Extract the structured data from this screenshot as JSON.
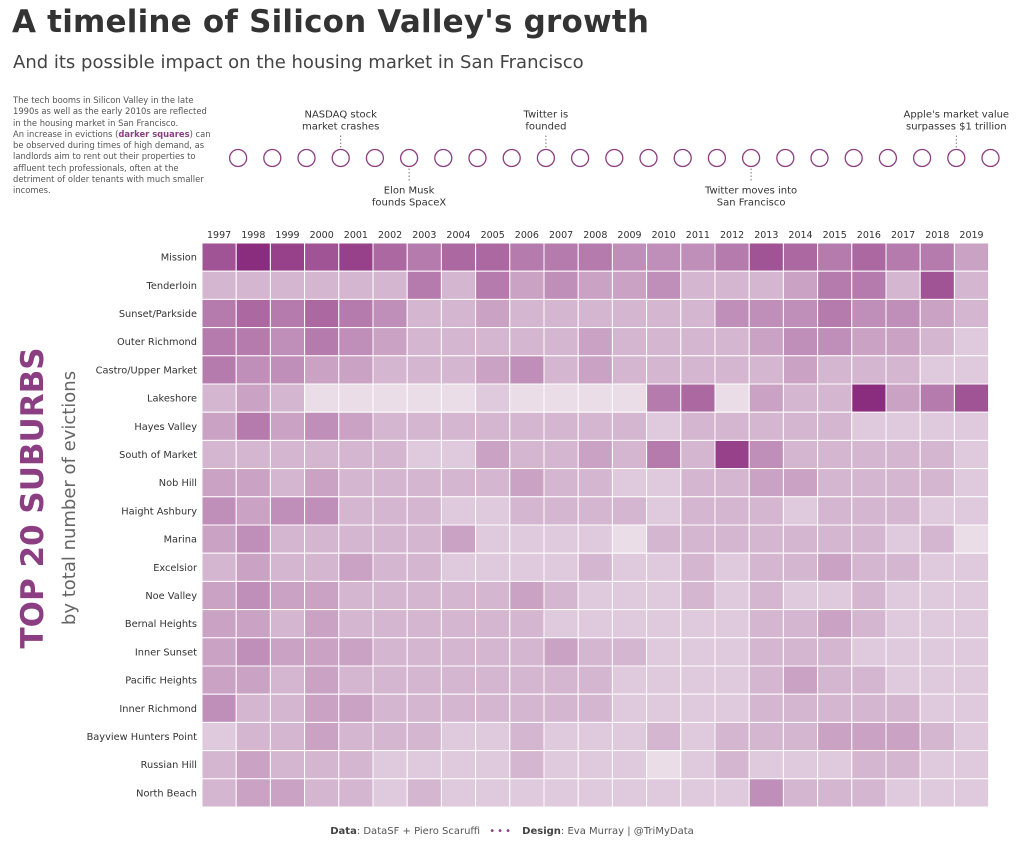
{
  "header": {
    "title": "A timeline of Silicon Valley's growth",
    "subtitle": "And its possible impact on the housing market in San Francisco"
  },
  "intro": {
    "p1": "The tech booms in Silicon Valley in the late 1990s as well as the early 2010s are reflected in the housing market in San Francisco.",
    "p2_before": "An increase in evictions (",
    "p2_highlight": "darker squares",
    "p2_after": ") can be observed during times of high demand, as landlords aim to rent out their properties to affluent tech professionals, often at the detriment of older tenants with much smaller incomes."
  },
  "side_label": {
    "big": "TOP 20 SUBURBS",
    "small": "by total number of evictions"
  },
  "footer": {
    "data_label": "Data",
    "data_value": ": DataSF + Piero Scaruffi",
    "dots": "•••",
    "design_label": "Design",
    "design_value": ": Eva Murray | @TriMyData"
  },
  "colors": {
    "accent": "#8b3f82",
    "cell_max": "#8b2d7e",
    "cell_min": "#f4f0f3"
  },
  "chart_data": {
    "type": "heatmap",
    "x": [
      "1997",
      "1998",
      "1999",
      "2000",
      "2001",
      "2002",
      "2003",
      "2004",
      "2005",
      "2006",
      "2007",
      "2008",
      "2009",
      "2010",
      "2011",
      "2012",
      "2013",
      "2014",
      "2015",
      "2016",
      "2017",
      "2018",
      "2019"
    ],
    "y": [
      "Mission",
      "Tenderloin",
      "Sunset/Parkside",
      "Outer Richmond",
      "Castro/Upper Market",
      "Lakeshore",
      "Hayes Valley",
      "South of Market",
      "Nob Hill",
      "Haight Ashbury",
      "Marina",
      "Excelsior",
      "Noe Valley",
      "Bernal Heights",
      "Inner Sunset",
      "Pacific Heights",
      "Inner Richmond",
      "Bayview Hunters Point",
      "Russian Hill",
      "North Beach"
    ],
    "intensity_scale": [
      0,
      10
    ],
    "values": [
      [
        8,
        10,
        9,
        8,
        9,
        7,
        6,
        7,
        7,
        6,
        6,
        6,
        5,
        5,
        5,
        6,
        8,
        7,
        6,
        7,
        6,
        6,
        4
      ],
      [
        3,
        3,
        3,
        3,
        3,
        3,
        6,
        3,
        6,
        4,
        5,
        4,
        4,
        5,
        3,
        3,
        3,
        4,
        6,
        6,
        3,
        8,
        3
      ],
      [
        6,
        7,
        6,
        7,
        6,
        5,
        3,
        3,
        4,
        3,
        3,
        3,
        3,
        3,
        3,
        5,
        5,
        5,
        6,
        5,
        5,
        4,
        3
      ],
      [
        6,
        6,
        5,
        6,
        5,
        4,
        3,
        3,
        3,
        3,
        3,
        4,
        3,
        3,
        3,
        3,
        4,
        5,
        5,
        4,
        4,
        3,
        2
      ],
      [
        6,
        5,
        5,
        4,
        4,
        3,
        3,
        3,
        4,
        5,
        3,
        4,
        3,
        3,
        3,
        3,
        3,
        4,
        3,
        3,
        3,
        2,
        2
      ],
      [
        3,
        4,
        3,
        1,
        1,
        1,
        1,
        1,
        2,
        1,
        1,
        1,
        1,
        6,
        7,
        1,
        4,
        3,
        3,
        10,
        4,
        6,
        8
      ],
      [
        4,
        6,
        4,
        5,
        4,
        3,
        3,
        3,
        3,
        3,
        3,
        3,
        3,
        2,
        3,
        3,
        3,
        3,
        3,
        2,
        2,
        2,
        2
      ],
      [
        3,
        3,
        3,
        3,
        3,
        3,
        2,
        2,
        4,
        3,
        3,
        4,
        3,
        6,
        3,
        9,
        5,
        3,
        3,
        3,
        3,
        3,
        2
      ],
      [
        4,
        4,
        3,
        4,
        3,
        3,
        3,
        3,
        3,
        4,
        3,
        3,
        2,
        2,
        3,
        3,
        4,
        4,
        3,
        3,
        3,
        3,
        2
      ],
      [
        5,
        4,
        5,
        5,
        3,
        3,
        3,
        2,
        2,
        3,
        3,
        3,
        3,
        2,
        3,
        3,
        3,
        2,
        3,
        3,
        3,
        2,
        2
      ],
      [
        4,
        5,
        3,
        3,
        3,
        3,
        3,
        4,
        2,
        2,
        2,
        2,
        1,
        3,
        3,
        3,
        3,
        3,
        3,
        3,
        2,
        3,
        1
      ],
      [
        3,
        4,
        3,
        3,
        4,
        3,
        3,
        2,
        2,
        2,
        2,
        3,
        2,
        2,
        3,
        2,
        3,
        3,
        4,
        3,
        3,
        2,
        2
      ],
      [
        4,
        5,
        4,
        4,
        3,
        3,
        3,
        3,
        3,
        4,
        3,
        2,
        2,
        2,
        3,
        2,
        3,
        2,
        2,
        3,
        2,
        2,
        2
      ],
      [
        4,
        4,
        3,
        4,
        3,
        3,
        3,
        3,
        3,
        3,
        2,
        2,
        2,
        2,
        2,
        2,
        3,
        3,
        4,
        3,
        2,
        2,
        2
      ],
      [
        4,
        5,
        4,
        4,
        4,
        3,
        3,
        3,
        3,
        3,
        4,
        3,
        3,
        2,
        2,
        2,
        3,
        3,
        3,
        2,
        2,
        2,
        2
      ],
      [
        4,
        4,
        3,
        4,
        3,
        3,
        3,
        3,
        3,
        3,
        3,
        3,
        2,
        2,
        2,
        2,
        3,
        4,
        3,
        3,
        2,
        2,
        2
      ],
      [
        5,
        3,
        3,
        4,
        4,
        3,
        3,
        3,
        3,
        3,
        3,
        3,
        2,
        2,
        2,
        2,
        3,
        3,
        3,
        3,
        3,
        2,
        2
      ],
      [
        2,
        3,
        3,
        4,
        3,
        3,
        3,
        2,
        2,
        3,
        2,
        2,
        2,
        3,
        2,
        3,
        3,
        3,
        4,
        4,
        4,
        3,
        2
      ],
      [
        3,
        4,
        3,
        3,
        3,
        2,
        2,
        2,
        2,
        3,
        2,
        2,
        2,
        1,
        2,
        3,
        2,
        2,
        2,
        3,
        3,
        2,
        2
      ],
      [
        3,
        4,
        4,
        3,
        3,
        2,
        3,
        2,
        2,
        2,
        2,
        2,
        2,
        2,
        2,
        2,
        5,
        3,
        3,
        3,
        2,
        2,
        2
      ]
    ]
  },
  "timeline": {
    "events": [
      {
        "year": "2000",
        "label": [
          "NASDAQ stock",
          "market crashes"
        ],
        "position": "above"
      },
      {
        "year": "2002",
        "label": [
          "Elon Musk",
          "founds SpaceX"
        ],
        "position": "below"
      },
      {
        "year": "2006",
        "label": [
          "Twitter is",
          "founded"
        ],
        "position": "above"
      },
      {
        "year": "2012",
        "label": [
          "Twitter moves into",
          "San Francisco"
        ],
        "position": "below"
      },
      {
        "year": "2018",
        "label": [
          "Apple's market value",
          "surpasses $1 trillion"
        ],
        "position": "above"
      }
    ]
  }
}
